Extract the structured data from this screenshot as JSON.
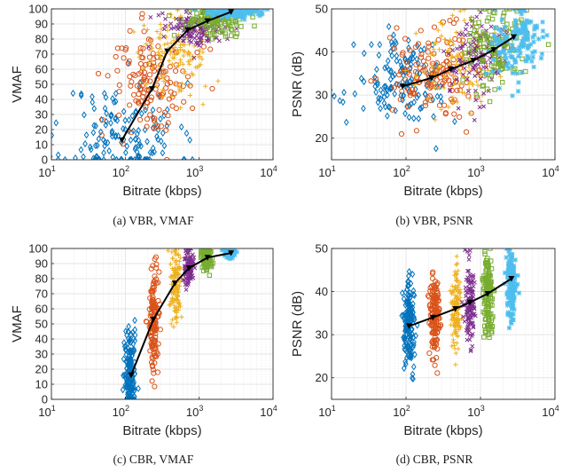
{
  "colors": {
    "s1": "#0072BD",
    "s2": "#D95319",
    "s3": "#EDB120",
    "s4": "#7E2F8E",
    "s5": "#77AC30",
    "s6": "#4DBEEE",
    "avg": "#000000",
    "grid": "#dedede",
    "axis": "#262626"
  },
  "chart_data": [
    {
      "type": "scatter",
      "caption": "(a) VBR, VMAF",
      "xlabel": "Bitrate (kbps)",
      "ylabel": "VMAF",
      "xscale": "log",
      "xlim": [
        10,
        10000
      ],
      "ylim": [
        0,
        100
      ],
      "yticks": [
        0,
        10,
        20,
        30,
        40,
        50,
        60,
        70,
        80,
        90,
        100
      ],
      "xtick_labels": [
        {
          "base": "10",
          "exp": "1"
        },
        {
          "base": "10",
          "exp": "2"
        },
        {
          "base": "10",
          "exp": "3"
        },
        {
          "base": "10",
          "exp": "4"
        }
      ],
      "grid": true,
      "series": [
        {
          "marker": "diamond",
          "colorKey": "s1",
          "center": 90,
          "xspread": 1.1,
          "ymean": 15,
          "ysd": 18,
          "n": 150,
          "seed": 11
        },
        {
          "marker": "circle",
          "colorKey": "s2",
          "center": 240,
          "xspread": 0.8,
          "ymean": 50,
          "ysd": 18,
          "n": 140,
          "seed": 12
        },
        {
          "marker": "plus",
          "colorKey": "s3",
          "center": 480,
          "xspread": 0.7,
          "ymean": 70,
          "ysd": 14,
          "n": 130,
          "seed": 13
        },
        {
          "marker": "x",
          "colorKey": "s4",
          "center": 900,
          "xspread": 0.6,
          "ymean": 87,
          "ysd": 6,
          "n": 130,
          "seed": 14
        },
        {
          "marker": "square",
          "colorKey": "s5",
          "center": 1800,
          "xspread": 0.6,
          "ymean": 93,
          "ysd": 5,
          "n": 130,
          "seed": 15
        },
        {
          "marker": "star",
          "colorKey": "s6",
          "center": 3000,
          "xspread": 0.5,
          "ymean": 98,
          "ysd": 2,
          "n": 140,
          "seed": 16
        }
      ],
      "average_line": {
        "x": [
          90,
          230,
          370,
          700,
          1300,
          2700
        ],
        "y": [
          13,
          47,
          72,
          86,
          92,
          98
        ]
      }
    },
    {
      "type": "scatter",
      "caption": "(b) VBR, PSNR",
      "xlabel": "Bitrate (kbps)",
      "ylabel": "PSNR (dB)",
      "xscale": "log",
      "xlim": [
        10,
        10000
      ],
      "ylim": [
        15,
        50
      ],
      "yticks": [
        20,
        30,
        40,
        50
      ],
      "xtick_labels": [
        {
          "base": "10",
          "exp": "1"
        },
        {
          "base": "10",
          "exp": "2"
        },
        {
          "base": "10",
          "exp": "3"
        },
        {
          "base": "10",
          "exp": "4"
        }
      ],
      "grid": true,
      "series": [
        {
          "marker": "diamond",
          "colorKey": "s1",
          "center": 90,
          "xspread": 0.9,
          "ymean": 33,
          "ysd": 5,
          "n": 150,
          "seed": 21
        },
        {
          "marker": "circle",
          "colorKey": "s2",
          "center": 230,
          "xspread": 0.8,
          "ymean": 35,
          "ysd": 5,
          "n": 140,
          "seed": 22
        },
        {
          "marker": "plus",
          "colorKey": "s3",
          "center": 450,
          "xspread": 0.7,
          "ymean": 37,
          "ysd": 5,
          "n": 130,
          "seed": 23
        },
        {
          "marker": "x",
          "colorKey": "s4",
          "center": 850,
          "xspread": 0.6,
          "ymean": 39,
          "ysd": 5,
          "n": 130,
          "seed": 24
        },
        {
          "marker": "square",
          "colorKey": "s5",
          "center": 1700,
          "xspread": 0.6,
          "ymean": 41,
          "ysd": 4.5,
          "n": 130,
          "seed": 25
        },
        {
          "marker": "star",
          "colorKey": "s6",
          "center": 3200,
          "xspread": 0.5,
          "ymean": 43,
          "ysd": 4,
          "n": 140,
          "seed": 26
        }
      ],
      "average_line": {
        "x": [
          90,
          220,
          400,
          800,
          1500,
          2800
        ],
        "y": [
          32,
          34,
          36,
          38,
          40.5,
          43.5
        ]
      }
    },
    {
      "type": "scatter",
      "caption": "(c) CBR, VMAF",
      "xlabel": "Bitrate (kbps)",
      "ylabel": "VMAF",
      "xscale": "log",
      "xlim": [
        10,
        10000
      ],
      "ylim": [
        0,
        100
      ],
      "yticks": [
        0,
        10,
        20,
        30,
        40,
        50,
        60,
        70,
        80,
        90,
        100
      ],
      "xtick_labels": [
        {
          "base": "10",
          "exp": "1"
        },
        {
          "base": "10",
          "exp": "2"
        },
        {
          "base": "10",
          "exp": "3"
        },
        {
          "base": "10",
          "exp": "4"
        }
      ],
      "grid": true,
      "series": [
        {
          "marker": "diamond",
          "colorKey": "s1",
          "center": 115,
          "xspread": 0.12,
          "ymean": 18,
          "ysd": 14,
          "n": 150,
          "seed": 31
        },
        {
          "marker": "circle",
          "colorKey": "s2",
          "center": 240,
          "xspread": 0.1,
          "ymean": 52,
          "ysd": 18,
          "n": 140,
          "seed": 32
        },
        {
          "marker": "plus",
          "colorKey": "s3",
          "center": 480,
          "xspread": 0.1,
          "ymean": 75,
          "ysd": 12,
          "n": 130,
          "seed": 33
        },
        {
          "marker": "x",
          "colorKey": "s4",
          "center": 720,
          "xspread": 0.1,
          "ymean": 87,
          "ysd": 6,
          "n": 130,
          "seed": 34
        },
        {
          "marker": "square",
          "colorKey": "s5",
          "center": 1250,
          "xspread": 0.1,
          "ymean": 94,
          "ysd": 4,
          "n": 130,
          "seed": 35
        },
        {
          "marker": "star",
          "colorKey": "s6",
          "center": 2600,
          "xspread": 0.1,
          "ymean": 98,
          "ysd": 2,
          "n": 140,
          "seed": 36
        }
      ],
      "average_line": {
        "x": [
          120,
          240,
          470,
          730,
          1300,
          2700
        ],
        "y": [
          16,
          53,
          77,
          87,
          94,
          97
        ]
      }
    },
    {
      "type": "scatter",
      "caption": "(d) CBR, PSNR",
      "xlabel": "Bitrate (kbps)",
      "ylabel": "PSNR (dB)",
      "xscale": "log",
      "xlim": [
        10,
        10000
      ],
      "ylim": [
        15,
        50
      ],
      "yticks": [
        20,
        30,
        40,
        50
      ],
      "xtick_labels": [
        {
          "base": "10",
          "exp": "1"
        },
        {
          "base": "10",
          "exp": "2"
        },
        {
          "base": "10",
          "exp": "3"
        },
        {
          "base": "10",
          "exp": "4"
        }
      ],
      "grid": true,
      "series": [
        {
          "marker": "diamond",
          "colorKey": "s1",
          "center": 110,
          "xspread": 0.12,
          "ymean": 32.5,
          "ysd": 5,
          "n": 150,
          "seed": 41
        },
        {
          "marker": "circle",
          "colorKey": "s2",
          "center": 240,
          "xspread": 0.1,
          "ymean": 34.5,
          "ysd": 5,
          "n": 140,
          "seed": 42
        },
        {
          "marker": "plus",
          "colorKey": "s3",
          "center": 470,
          "xspread": 0.1,
          "ymean": 36.5,
          "ysd": 5,
          "n": 130,
          "seed": 43
        },
        {
          "marker": "x",
          "colorKey": "s4",
          "center": 720,
          "xspread": 0.1,
          "ymean": 37.5,
          "ysd": 5,
          "n": 130,
          "seed": 44
        },
        {
          "marker": "square",
          "colorKey": "s5",
          "center": 1250,
          "xspread": 0.1,
          "ymean": 40,
          "ysd": 5,
          "n": 130,
          "seed": 45
        },
        {
          "marker": "star",
          "colorKey": "s6",
          "center": 2600,
          "xspread": 0.1,
          "ymean": 42,
          "ysd": 4.5,
          "n": 140,
          "seed": 46
        }
      ],
      "average_line": {
        "x": [
          110,
          230,
          460,
          720,
          1250,
          2600
        ],
        "y": [
          32,
          34,
          36,
          37.5,
          39.5,
          43
        ]
      }
    }
  ]
}
